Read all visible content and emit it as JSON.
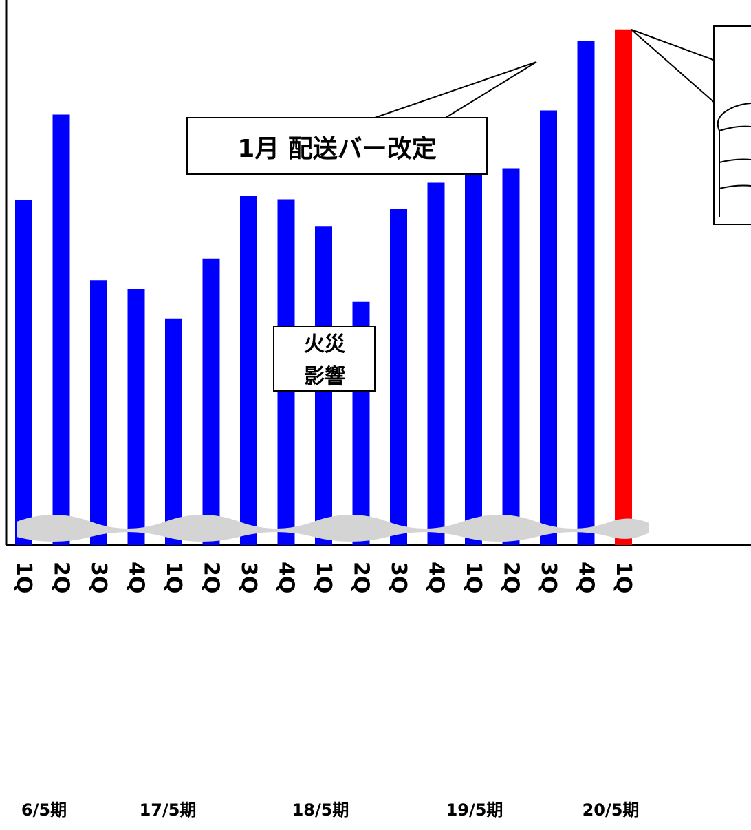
{
  "chart_data": {
    "type": "bar",
    "categories": [
      "1Q",
      "2Q",
      "3Q",
      "4Q",
      "1Q",
      "2Q",
      "3Q",
      "4Q",
      "1Q",
      "2Q",
      "3Q",
      "4Q",
      "1Q",
      "2Q",
      "3Q",
      "4Q",
      "1Q"
    ],
    "periods": [
      "6/5期",
      "17/5期",
      "18/5期",
      "19/5期",
      "20/5期"
    ],
    "values": [
      668,
      834,
      513,
      496,
      439,
      555,
      676,
      670,
      617,
      471,
      651,
      702,
      720,
      730,
      842,
      976,
      999
    ],
    "colors": [
      "#0000ff",
      "#0000ff",
      "#0000ff",
      "#0000ff",
      "#0000ff",
      "#0000ff",
      "#0000ff",
      "#0000ff",
      "#0000ff",
      "#0000ff",
      "#0000ff",
      "#0000ff",
      "#0000ff",
      "#0000ff",
      "#0000ff",
      "#0000ff",
      "#ff0000"
    ],
    "axis_break": true,
    "grid": false,
    "annotations": {
      "delivery": "1月 配送バー改定",
      "fire_line1": "火災",
      "fire_line2": "影響"
    }
  }
}
